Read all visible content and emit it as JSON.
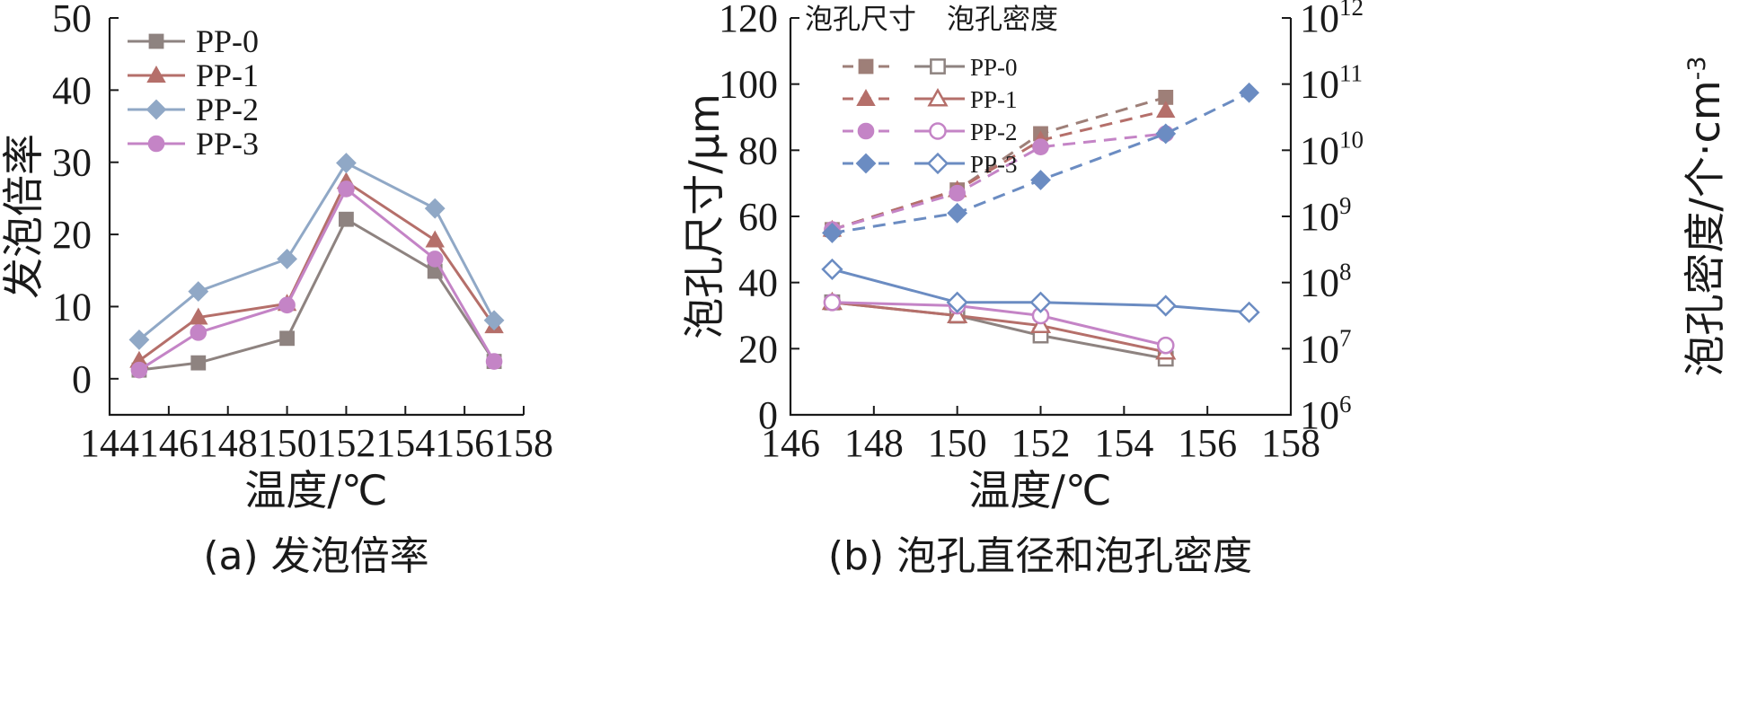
{
  "chart_data": [
    {
      "type": "line",
      "panel": "a",
      "caption": "(a) 发泡倍率",
      "title": "",
      "xlabel": "温度/℃",
      "ylabel": "发泡倍率",
      "xlim": [
        144,
        158
      ],
      "ylim": [
        -5,
        50
      ],
      "xticks": [
        144,
        146,
        148,
        150,
        152,
        154,
        156,
        158
      ],
      "yticks": [
        0,
        10,
        20,
        30,
        40,
        50
      ],
      "legend_position": "top-left",
      "series": [
        {
          "name": "PP-0",
          "color": "#8e8380",
          "marker": "square",
          "x": [
            145,
            147,
            150,
            152,
            155,
            157
          ],
          "y": [
            1.2,
            2.2,
            5.6,
            22.1,
            14.9,
            2.4
          ]
        },
        {
          "name": "PP-1",
          "color": "#b56f6a",
          "marker": "triangle",
          "x": [
            145,
            147,
            150,
            152,
            155,
            157
          ],
          "y": [
            2.5,
            8.5,
            10.4,
            27.3,
            19.2,
            7.3
          ]
        },
        {
          "name": "PP-2",
          "color": "#90a8c6",
          "marker": "diamond",
          "x": [
            145,
            147,
            150,
            152,
            155,
            157
          ],
          "y": [
            5.4,
            12.1,
            16.6,
            29.9,
            23.6,
            8.1
          ]
        },
        {
          "name": "PP-3",
          "color": "#c484c6",
          "marker": "circle",
          "x": [
            145,
            147,
            150,
            152,
            155,
            157
          ],
          "y": [
            1.2,
            6.4,
            10.2,
            26.3,
            16.6,
            2.4
          ]
        }
      ]
    },
    {
      "type": "line",
      "panel": "b",
      "caption": "(b) 泡孔直径和泡孔密度",
      "title": "",
      "xlabel": "温度/℃",
      "ylabel_left": "泡孔尺寸/μm",
      "ylabel_right": "泡孔密度/个·cm",
      "ylabel_right_exp": "-3",
      "xlim": [
        146,
        158
      ],
      "ylim_left": [
        0,
        120
      ],
      "ylim_right_log10": [
        6,
        12
      ],
      "xticks": [
        146,
        148,
        150,
        152,
        154,
        156,
        158
      ],
      "yticks_left": [
        0,
        20,
        40,
        60,
        80,
        100,
        120
      ],
      "yticks_right": [
        {
          "base": "10",
          "exp": "6"
        },
        {
          "base": "10",
          "exp": "7"
        },
        {
          "base": "10",
          "exp": "8"
        },
        {
          "base": "10",
          "exp": "9"
        },
        {
          "base": "10",
          "exp": "10"
        },
        {
          "base": "10",
          "exp": "11"
        },
        {
          "base": "10",
          "exp": "12"
        }
      ],
      "legend_header": [
        "泡孔尺寸",
        "泡孔密度"
      ],
      "legend_position": "top-left",
      "series_size": [
        {
          "name": "PP-0",
          "color": "#8e8380",
          "marker": "square",
          "x": [
            147,
            150,
            152,
            155
          ],
          "y": [
            34,
            30,
            24,
            17
          ]
        },
        {
          "name": "PP-1",
          "color": "#b56f6a",
          "marker": "triangle",
          "x": [
            147,
            150,
            152,
            155
          ],
          "y": [
            34,
            30,
            27,
            19
          ]
        },
        {
          "name": "PP-2",
          "color": "#c484c6",
          "marker": "circle",
          "x": [
            147,
            150,
            152,
            155
          ],
          "y": [
            34,
            33,
            30,
            21
          ]
        },
        {
          "name": "PP-3",
          "color": "#6b8cc2",
          "marker": "diamond",
          "x": [
            147,
            150,
            152,
            155,
            157
          ],
          "y": [
            44,
            34,
            34,
            33,
            31
          ]
        }
      ],
      "series_density_log10": [
        {
          "name": "PP-0",
          "color": "#9e7f78",
          "marker": "square",
          "x": [
            147,
            150,
            152,
            155
          ],
          "y": [
            8.8,
            9.4,
            10.25,
            10.8
          ]
        },
        {
          "name": "PP-1",
          "color": "#b56f6a",
          "marker": "triangle",
          "x": [
            147,
            150,
            152,
            155
          ],
          "y": [
            8.8,
            9.4,
            10.15,
            10.6
          ]
        },
        {
          "name": "PP-2",
          "color": "#c484c6",
          "marker": "circle",
          "x": [
            147,
            150,
            152,
            155
          ],
          "y": [
            8.8,
            9.35,
            10.05,
            10.25
          ]
        },
        {
          "name": "PP-3",
          "color": "#6b8cc2",
          "marker": "diamond",
          "x": [
            147,
            150,
            152,
            155,
            157
          ],
          "y": [
            8.75,
            9.05,
            9.55,
            10.25,
            10.87
          ]
        }
      ]
    }
  ]
}
